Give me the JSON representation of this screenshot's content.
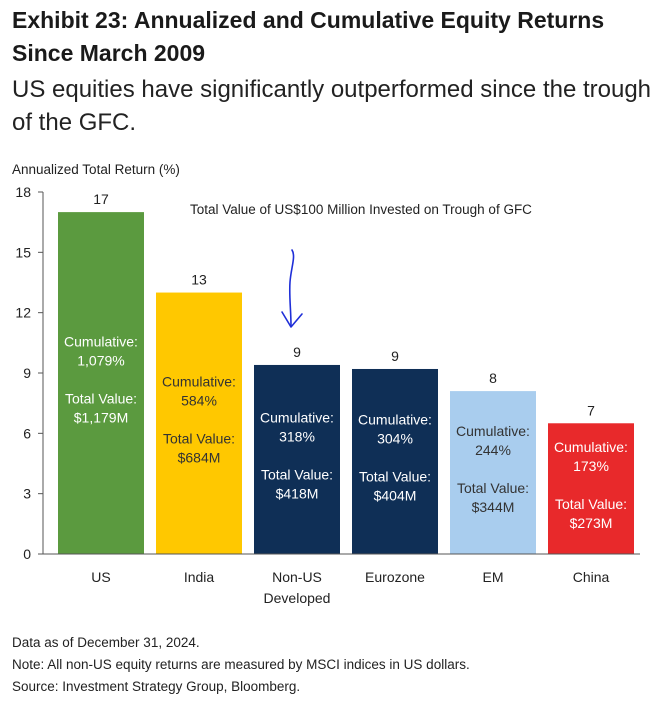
{
  "header": {
    "title": "Exhibit 23: Annualized and Cumulative Equity Returns Since March 2009",
    "subtitle": "US equities have significantly outperformed since the trough of the GFC."
  },
  "chart_data": {
    "type": "bar",
    "ylabel": "Annualized Total Return (%)",
    "ylim": [
      0,
      18
    ],
    "yticks": [
      0,
      3,
      6,
      9,
      12,
      15,
      18
    ],
    "annotation": "Total Value of US$100 Million Invested on Trough of GFC",
    "categories": [
      {
        "label": [
          "US"
        ],
        "value": 17,
        "value_label": "17",
        "color": "#5b9a3f",
        "text_color": "#ffffff",
        "cumulative_label": "Cumulative:",
        "cumulative": "1,079%",
        "total_label": "Total Value:",
        "total": "$1,179M"
      },
      {
        "label": [
          "India"
        ],
        "value": 13,
        "value_label": "13",
        "color": "#ffc800",
        "text_color": "#333333",
        "cumulative_label": "Cumulative:",
        "cumulative": "584%",
        "total_label": "Total Value:",
        "total": "$684M"
      },
      {
        "label": [
          "Non-US",
          "Developed"
        ],
        "value": 9.4,
        "value_label": "9",
        "color": "#0f2f56",
        "text_color": "#ffffff",
        "cumulative_label": "Cumulative:",
        "cumulative": "318%",
        "total_label": "Total Value:",
        "total": "$418M"
      },
      {
        "label": [
          "Eurozone"
        ],
        "value": 9.2,
        "value_label": "9",
        "color": "#0f2f56",
        "text_color": "#ffffff",
        "cumulative_label": "Cumulative:",
        "cumulative": "304%",
        "total_label": "Total Value:",
        "total": "$404M"
      },
      {
        "label": [
          "EM"
        ],
        "value": 8.1,
        "value_label": "8",
        "color": "#a9cdee",
        "text_color": "#333333",
        "cumulative_label": "Cumulative:",
        "cumulative": "244%",
        "total_label": "Total Value:",
        "total": "$344M"
      },
      {
        "label": [
          "China"
        ],
        "value": 6.5,
        "value_label": "7",
        "color": "#e8292b",
        "text_color": "#ffffff",
        "cumulative_label": "Cumulative:",
        "cumulative": "173%",
        "total_label": "Total Value:",
        "total": "$273M"
      }
    ],
    "arrow_color": "#1f2fd8"
  },
  "footer": {
    "lines": [
      "Data as of December 31, 2024.",
      "Note: All non-US equity returns are measured by MSCI indices in US dollars.",
      "Source: Investment Strategy Group, Bloomberg."
    ]
  }
}
